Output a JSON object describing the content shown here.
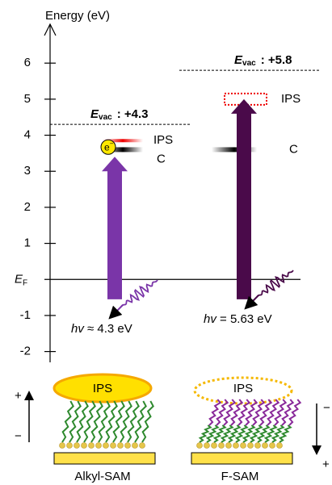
{
  "axis": {
    "label": "Energy (eV)",
    "ylim": [
      -2.3,
      6.9
    ],
    "yticks": [
      -2,
      -1,
      {
        "value": 0,
        "label": "E",
        "label_sub": "F"
      },
      1,
      2,
      3,
      4,
      5,
      6
    ]
  },
  "panels": [
    {
      "vacuum": {
        "symbol": "E",
        "sub": "vac",
        "text": ": +4.3",
        "value": 4.3
      },
      "ips": {
        "label": "IPS",
        "value": 3.85
      },
      "c": {
        "label": "C",
        "value": 3.6
      },
      "electron": {
        "label": "e",
        "sup": "−"
      },
      "photon": {
        "symbol": "hv",
        "text": " ≈ 4.3 eV"
      },
      "sam": {
        "ips": "IPS",
        "label": "Alkyl-SAM",
        "dipole_top": "+",
        "dipole_bottom": "−"
      }
    },
    {
      "vacuum": {
        "symbol": "E",
        "sub": "vac",
        "text": ": +5.8",
        "value": 5.8
      },
      "ips": {
        "label": "IPS",
        "value": 5.0
      },
      "c": {
        "label": "C",
        "value": 3.6
      },
      "photon": {
        "symbol": "hv",
        "text": " = 5.63 eV"
      },
      "sam": {
        "ips": "IPS",
        "label": "F-SAM",
        "dipole_top": "−",
        "dipole_bottom": "+"
      }
    }
  ]
}
